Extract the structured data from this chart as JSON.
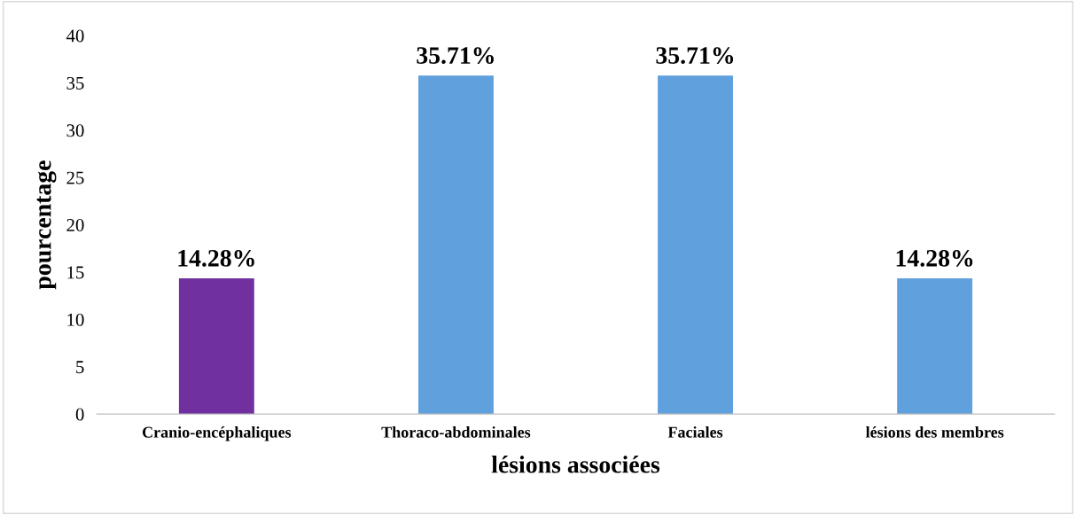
{
  "chart_data": {
    "type": "bar",
    "xlabel": "lésions associées",
    "ylabel": "pourcentage",
    "categories": [
      "Cranio-encéphaliques",
      "Thoraco-abdominales",
      "Faciales",
      "lésions des membres"
    ],
    "values": [
      14.28,
      35.71,
      35.71,
      14.28
    ],
    "colors": [
      "#7030a0",
      "#5fa0dd",
      "#5fa0dd",
      "#5fa0dd"
    ],
    "value_labels": [
      "14.28%",
      "35.71%",
      "35.71%",
      "14.28%"
    ],
    "ylim": [
      0,
      40
    ],
    "yticks": [
      0,
      5,
      10,
      15,
      20,
      25,
      30,
      35,
      40
    ],
    "grid": false
  }
}
